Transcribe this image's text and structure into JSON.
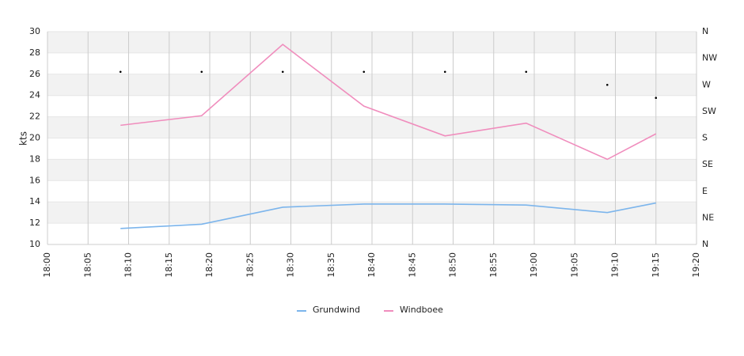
{
  "chart_data": {
    "type": "line",
    "y_label": "kts",
    "x": [
      "18:09",
      "18:19",
      "18:29",
      "18:39",
      "18:49",
      "18:59",
      "19:09",
      "19:15"
    ],
    "series": [
      {
        "name": "Grundwind",
        "color": "#7cb5ec",
        "values": [
          11.5,
          11.9,
          13.5,
          13.8,
          13.8,
          13.7,
          13.0,
          13.9
        ]
      },
      {
        "name": "Windboee",
        "color": "#f08dbd",
        "values": [
          21.2,
          22.1,
          28.8,
          23.0,
          20.2,
          21.4,
          18.0,
          20.4
        ]
      }
    ],
    "direction": {
      "axis": "y2",
      "color": "#000000",
      "values": [
        292,
        292,
        292,
        292,
        292,
        292,
        270,
        248
      ]
    },
    "xlim": [
      "18:00",
      "19:20"
    ],
    "xticks": [
      "18:00",
      "18:05",
      "18:10",
      "18:15",
      "18:20",
      "18:25",
      "18:30",
      "18:35",
      "18:40",
      "18:45",
      "18:50",
      "18:55",
      "19:00",
      "19:05",
      "19:10",
      "19:15",
      "19:20"
    ],
    "ylim": [
      10,
      30
    ],
    "yticks": [
      10,
      12,
      14,
      16,
      18,
      20,
      22,
      24,
      26,
      28,
      30
    ],
    "y2lim": [
      0,
      360
    ],
    "y2ticks": [
      {
        "value": 0,
        "label": "N"
      },
      {
        "value": 45,
        "label": "NE"
      },
      {
        "value": 90,
        "label": "E"
      },
      {
        "value": 135,
        "label": "SE"
      },
      {
        "value": 180,
        "label": "S"
      },
      {
        "value": 225,
        "label": "SW"
      },
      {
        "value": 270,
        "label": "W"
      },
      {
        "value": 315,
        "label": "NW"
      },
      {
        "value": 360,
        "label": "N"
      }
    ],
    "grid": true,
    "legend": "bottom"
  }
}
